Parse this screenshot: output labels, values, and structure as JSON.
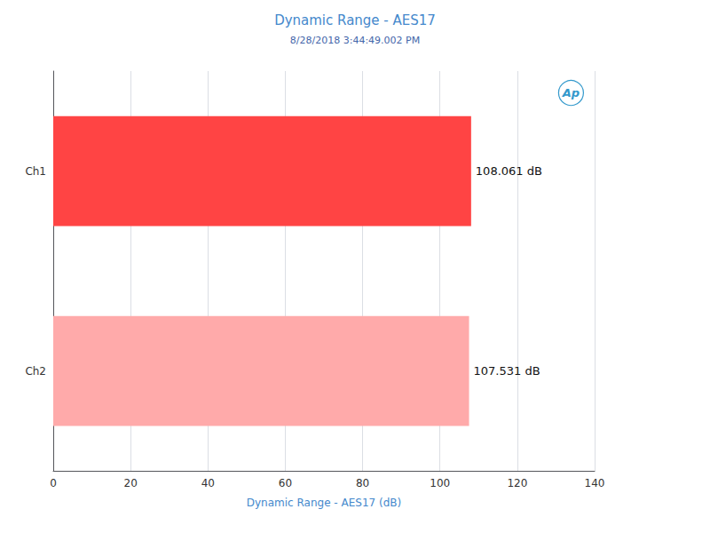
{
  "chart_data": {
    "type": "bar",
    "orientation": "horizontal",
    "title": "Dynamic Range - AES17",
    "subtitle": "8/28/2018 3:44:49.002 PM",
    "xlabel": "Dynamic Range - AES17 (dB)",
    "categories": [
      "Ch1",
      "Ch2"
    ],
    "values": [
      108.061,
      107.531
    ],
    "value_labels": [
      "108.061 dB",
      "107.531 dB"
    ],
    "data_labels": true,
    "colors": [
      "#FF4444",
      "#FFAAAA"
    ],
    "xlim": [
      0,
      140
    ],
    "xticks": [
      0,
      20,
      40,
      60,
      80,
      100,
      120,
      140
    ],
    "grid": true,
    "annotations": [
      "Ap"
    ]
  }
}
